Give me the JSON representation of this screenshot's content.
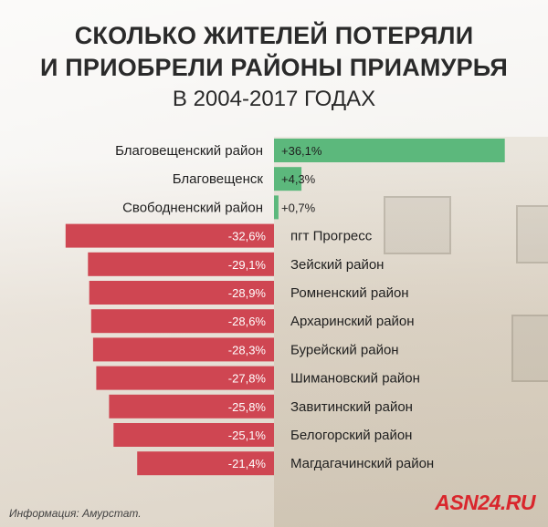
{
  "title_line1": "СКОЛЬКО ЖИТЕЛЕЙ ПОТЕРЯЛИ",
  "title_line2": "И ПРИОБРЕЛИ РАЙОНЫ ПРИАМУРЬЯ",
  "subtitle": "В 2004-2017 ГОДАХ",
  "source": "Информация: Амурстат.",
  "brand": "ASN24.RU",
  "colors": {
    "positive": "#5cb87c",
    "negative": "#cf4652"
  },
  "chart_data": {
    "type": "bar",
    "orientation": "horizontal",
    "unit": "%",
    "categories": [
      "Благовещенский район",
      "Благовещенск",
      "Свободненский район",
      "пгт Прогресс",
      "Зейский район",
      "Ромненский район",
      "Архаринский район",
      "Бурейский район",
      "Шимановский район",
      "Завитинский район",
      "Белогорский район",
      "Магдагачинский район"
    ],
    "values": [
      36.1,
      4.3,
      0.7,
      -32.6,
      -29.1,
      -28.9,
      -28.6,
      -28.3,
      -27.8,
      -25.8,
      -25.1,
      -21.4
    ],
    "value_labels": [
      "+36,1%",
      "+4,3%",
      "+0,7%",
      "-32,6%",
      "-29,1%",
      "-28,9%",
      "-28,6%",
      "-28,3%",
      "-27,8%",
      "-25,8%",
      "-25,1%",
      "-21,4%"
    ],
    "title": "СКОЛЬКО ЖИТЕЛЕЙ ПОТЕРЯЛИ И ПРИОБРЕЛИ РАЙОНЫ ПРИАМУРЬЯ",
    "subtitle": "В 2004-2017 ГОДАХ",
    "grid": false,
    "legend": "none"
  }
}
